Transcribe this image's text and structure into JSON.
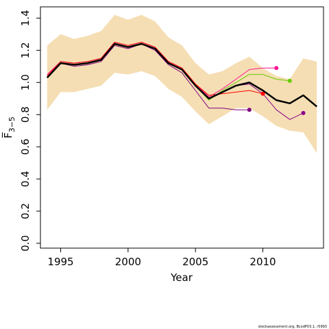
{
  "chart_data": {
    "type": "line",
    "xlabel": "Year",
    "ylabel": "F̅",
    "ylabel_sub": "3−5",
    "xlim": [
      1993.5,
      2014.5
    ],
    "ylim": [
      -0.03,
      1.47
    ],
    "xticks": [
      "1995",
      "2000",
      "2005",
      "2010"
    ],
    "yticks": [
      "0.0",
      "0.2",
      "0.4",
      "0.6",
      "0.8",
      "1.0",
      "1.2",
      "1.4"
    ],
    "band": {
      "color": "#F5DEB3",
      "x": [
        1994,
        1995,
        1996,
        1997,
        1998,
        1999,
        2000,
        2001,
        2002,
        2003,
        2004,
        2005,
        2006,
        2007,
        2008,
        2009,
        2010,
        2011,
        2012,
        2013,
        2014
      ],
      "upper": [
        1.23,
        1.3,
        1.27,
        1.29,
        1.32,
        1.42,
        1.39,
        1.42,
        1.38,
        1.28,
        1.23,
        1.12,
        1.05,
        1.07,
        1.12,
        1.16,
        1.09,
        1.04,
        1.02,
        1.15,
        1.13
      ],
      "lower": [
        0.83,
        0.94,
        0.94,
        0.96,
        0.98,
        1.06,
        1.05,
        1.07,
        1.04,
        0.96,
        0.91,
        0.82,
        0.74,
        0.79,
        0.84,
        0.84,
        0.79,
        0.73,
        0.7,
        0.69,
        0.56
      ]
    },
    "series": [
      {
        "color": "#000000",
        "width": 2.5,
        "endpoint": false,
        "x": [
          1994,
          1995,
          1996,
          1997,
          1998,
          1999,
          2000,
          2001,
          2002,
          2003,
          2004,
          2005,
          2006,
          2007,
          2008,
          2009,
          2010,
          2011,
          2012,
          2013,
          2014
        ],
        "values": [
          1.03,
          1.12,
          1.11,
          1.12,
          1.14,
          1.24,
          1.22,
          1.24,
          1.21,
          1.12,
          1.08,
          0.98,
          0.9,
          0.94,
          0.98,
          1.0,
          0.95,
          0.89,
          0.87,
          0.92,
          0.85
        ]
      },
      {
        "color": "#66CC00",
        "width": 1,
        "endpoint": true,
        "x": [
          1994,
          1995,
          1996,
          1997,
          1998,
          1999,
          2000,
          2001,
          2002,
          2003,
          2004,
          2005,
          2006,
          2007,
          2008,
          2009,
          2010,
          2011,
          2012
        ],
        "values": [
          1.03,
          1.12,
          1.11,
          1.12,
          1.14,
          1.24,
          1.22,
          1.24,
          1.21,
          1.12,
          1.08,
          0.98,
          0.89,
          0.95,
          1.0,
          1.05,
          1.05,
          1.02,
          1.01
        ]
      },
      {
        "color": "#FF1493",
        "width": 1,
        "endpoint": true,
        "x": [
          1994,
          1995,
          1996,
          1997,
          1998,
          1999,
          2000,
          2001,
          2002,
          2003,
          2004,
          2005,
          2006,
          2007,
          2008,
          2009,
          2010,
          2011
        ],
        "values": [
          1.05,
          1.13,
          1.12,
          1.13,
          1.15,
          1.25,
          1.23,
          1.25,
          1.22,
          1.13,
          1.09,
          0.99,
          0.91,
          0.96,
          1.02,
          1.08,
          1.09,
          1.09
        ]
      },
      {
        "color": "#FF0000",
        "width": 1,
        "endpoint": true,
        "x": [
          1994,
          1995,
          1996,
          1997,
          1998,
          1999,
          2000,
          2001,
          2002,
          2003,
          2004,
          2005,
          2006,
          2007,
          2008,
          2009,
          2010
        ],
        "values": [
          1.04,
          1.13,
          1.12,
          1.13,
          1.15,
          1.25,
          1.23,
          1.25,
          1.22,
          1.13,
          1.09,
          0.99,
          0.92,
          0.93,
          0.94,
          0.95,
          0.93
        ]
      },
      {
        "color": "#800080",
        "width": 1,
        "endpoint": true,
        "x": [
          1994,
          1995,
          1996,
          1997,
          1998,
          1999,
          2000,
          2001,
          2002,
          2003,
          2004,
          2005,
          2006,
          2007,
          2008,
          2009
        ],
        "values": [
          1.03,
          1.12,
          1.1,
          1.11,
          1.13,
          1.23,
          1.21,
          1.24,
          1.2,
          1.11,
          1.06,
          0.95,
          0.84,
          0.84,
          0.83,
          0.83
        ]
      },
      {
        "color": "#8B008B",
        "width": 1,
        "endpoint": true,
        "x": [
          1994,
          1995,
          1996,
          1997,
          1998,
          1999,
          2000,
          2001,
          2002,
          2003,
          2004,
          2005,
          2006,
          2007,
          2008,
          2009,
          2010,
          2011,
          2012,
          2013
        ],
        "values": [
          1.03,
          1.12,
          1.11,
          1.12,
          1.14,
          1.24,
          1.22,
          1.24,
          1.21,
          1.12,
          1.08,
          0.98,
          0.9,
          0.94,
          0.98,
          0.99,
          0.93,
          0.83,
          0.77,
          0.81
        ]
      }
    ]
  },
  "footer": "stockassessment.org, BcodP03.1, r5993"
}
